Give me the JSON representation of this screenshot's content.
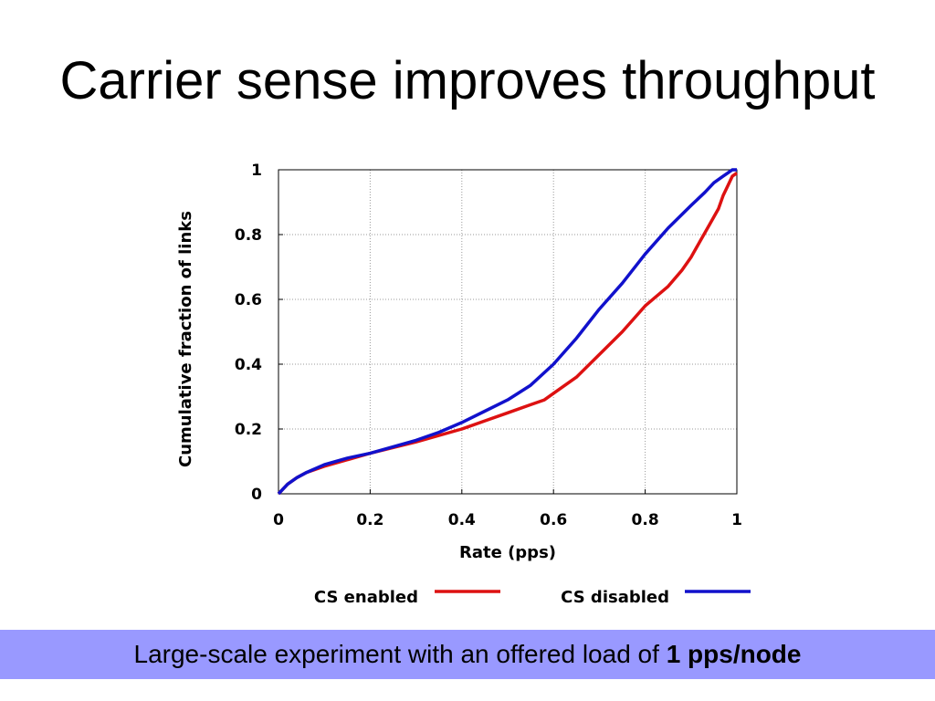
{
  "slide": {
    "title": "Carrier sense improves throughput",
    "footer": {
      "text": "Large-scale experiment with an offered load of ",
      "emphasis": "1 pps/node",
      "background": "#9999ff"
    }
  },
  "chart_data": {
    "type": "line",
    "title": "",
    "xlabel": "Rate (pps)",
    "ylabel": "Cumulative fraction of links",
    "xlim": [
      0,
      1
    ],
    "ylim": [
      0,
      1
    ],
    "x_ticks": [
      "0",
      "0.2",
      "0.4",
      "0.6",
      "0.8",
      "1"
    ],
    "y_ticks": [
      "0",
      "0.2",
      "0.4",
      "0.6",
      "0.8",
      "1"
    ],
    "grid": true,
    "legend_position": "bottom",
    "series": [
      {
        "name": "CS enabled",
        "color": "#dd1111",
        "x": [
          0,
          0.02,
          0.04,
          0.06,
          0.1,
          0.15,
          0.2,
          0.3,
          0.4,
          0.45,
          0.5,
          0.55,
          0.58,
          0.6,
          0.65,
          0.7,
          0.75,
          0.8,
          0.85,
          0.88,
          0.9,
          0.92,
          0.94,
          0.96,
          0.97,
          0.98,
          0.99,
          1.0
        ],
        "y": [
          0,
          0.03,
          0.05,
          0.065,
          0.085,
          0.105,
          0.125,
          0.16,
          0.2,
          0.225,
          0.25,
          0.275,
          0.29,
          0.31,
          0.36,
          0.43,
          0.5,
          0.58,
          0.64,
          0.69,
          0.73,
          0.78,
          0.83,
          0.88,
          0.92,
          0.95,
          0.98,
          0.99
        ]
      },
      {
        "name": "CS disabled",
        "color": "#1111cc",
        "x": [
          0,
          0.02,
          0.04,
          0.06,
          0.1,
          0.15,
          0.2,
          0.3,
          0.35,
          0.4,
          0.45,
          0.5,
          0.55,
          0.6,
          0.65,
          0.7,
          0.75,
          0.8,
          0.85,
          0.9,
          0.93,
          0.95,
          0.97,
          0.98,
          0.99,
          1.0
        ],
        "y": [
          0,
          0.03,
          0.05,
          0.065,
          0.09,
          0.11,
          0.125,
          0.165,
          0.19,
          0.22,
          0.255,
          0.29,
          0.335,
          0.4,
          0.48,
          0.57,
          0.65,
          0.74,
          0.82,
          0.89,
          0.93,
          0.96,
          0.98,
          0.99,
          1.0,
          1.0
        ]
      }
    ]
  }
}
